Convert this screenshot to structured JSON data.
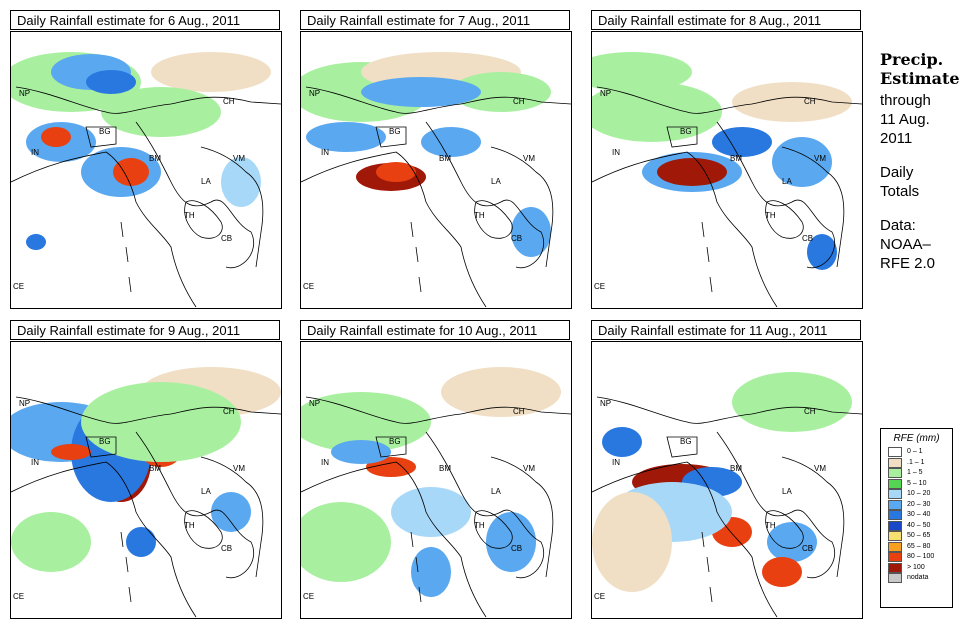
{
  "panels": [
    {
      "title": "Daily Rainfall estimate for  6 Aug., 2011"
    },
    {
      "title": "Daily Rainfall estimate for  7 Aug., 2011"
    },
    {
      "title": "Daily Rainfall estimate for  8 Aug., 2011"
    },
    {
      "title": "Daily Rainfall estimate for  9 Aug., 2011"
    },
    {
      "title": "Daily Rainfall estimate for  10 Aug., 2011"
    },
    {
      "title": "Daily Rainfall estimate for  11 Aug., 2011"
    }
  ],
  "map_labels": {
    "np": "NP",
    "bg": "BG",
    "in": "IN",
    "bm": "BM",
    "ch": "CH",
    "vm": "VM",
    "la": "LA",
    "th": "TH",
    "cb": "CB",
    "ce": "CE"
  },
  "side": {
    "heading1": "Precip.",
    "heading2": "Estimate",
    "through": "through",
    "date1": "11 Aug.",
    "date2": "2011",
    "daily1": "Daily",
    "daily2": "Totals",
    "data1": "Data:",
    "data2": "NOAA–",
    "data3": "RFE 2.0"
  },
  "legend": {
    "title": "RFE (mm)",
    "items": [
      {
        "label": "0 – 1",
        "color": "#ffffff"
      },
      {
        "label": ".1 – 1",
        "color": "#f0dfc4"
      },
      {
        "label": "1 – 5",
        "color": "#a8f0a0"
      },
      {
        "label": "5 – 10",
        "color": "#54d654"
      },
      {
        "label": "10 – 20",
        "color": "#a8d8f8"
      },
      {
        "label": "20 – 30",
        "color": "#5aa8f0"
      },
      {
        "label": "30 – 40",
        "color": "#2878e0"
      },
      {
        "label": "40 – 50",
        "color": "#1848c8"
      },
      {
        "label": "50 – 65",
        "color": "#f8e070"
      },
      {
        "label": "65 – 80",
        "color": "#f8a020"
      },
      {
        "label": "80 – 100",
        "color": "#e84010"
      },
      {
        "label": "> 100",
        "color": "#a01808"
      },
      {
        "label": "nodata",
        "color": "#c8c8c8"
      }
    ]
  }
}
